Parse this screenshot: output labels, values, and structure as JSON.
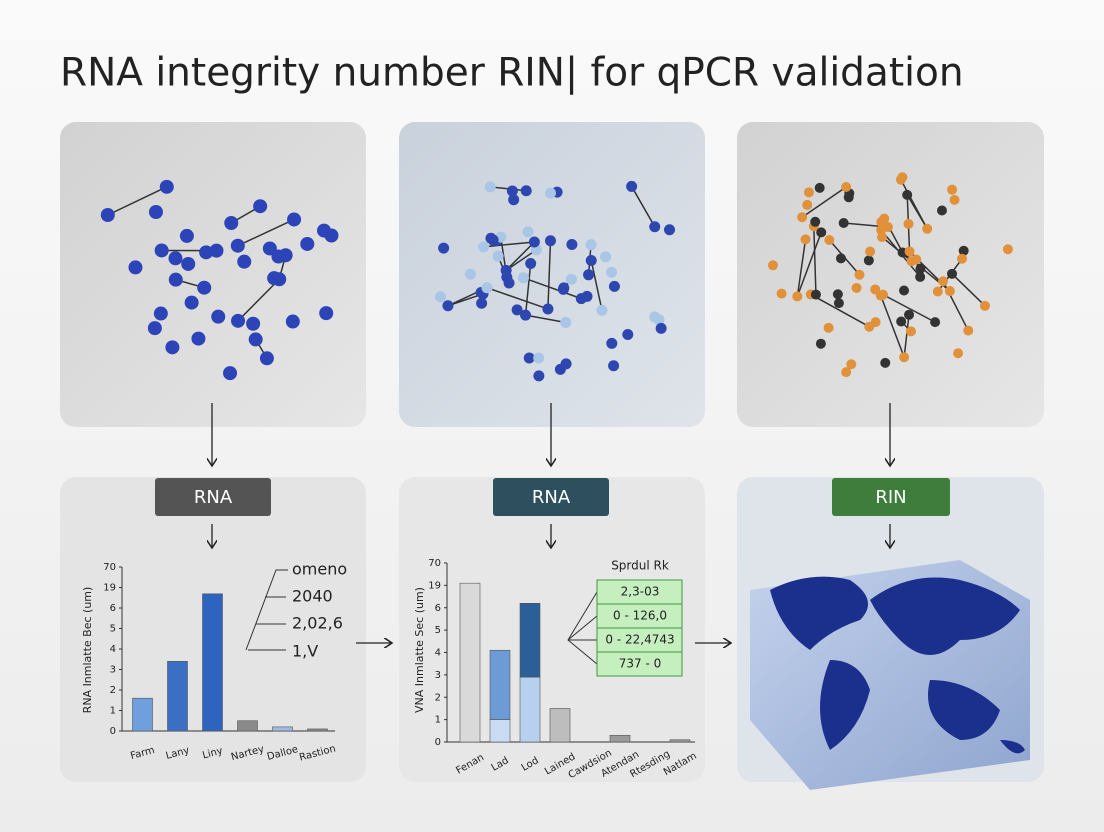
{
  "title": "RNA integrity number RIN| for qPCR validation",
  "stages": [
    {
      "label": "RNA"
    },
    {
      "label": "RNA"
    },
    {
      "label": "RIN"
    }
  ],
  "charts": [
    {
      "type": "bar",
      "ylabel": "RNA Inmlatte Bec (um)",
      "yticks": [
        0,
        1,
        2,
        3,
        4,
        5,
        6,
        19,
        70
      ],
      "categories": [
        "Farm",
        "Lany",
        "Liny",
        "Nartey",
        "Dalloe",
        "Rastion"
      ],
      "values": [
        1.6,
        3.4,
        15,
        0.5,
        0.2,
        0.1
      ],
      "colors": [
        "#6f9fdc",
        "#3a6fc4",
        "#2f63c0",
        "#8a8a8a",
        "#9bbbe6",
        "#8a8a8a"
      ],
      "annotations": [
        "omeno",
        "2040",
        "2,02,6",
        "1,V"
      ]
    },
    {
      "type": "stacked-bar",
      "ylabel": "VNA Inmlatte Sec (um)",
      "yticks": [
        0,
        1,
        2,
        3,
        4,
        5,
        6,
        19,
        70
      ],
      "categories": [
        "Fenan",
        "Lad",
        "Lod",
        "Lained",
        "Cawdsion",
        "Atendan",
        "Rtesding",
        "Natlam"
      ],
      "series": [
        {
          "values": [
            24,
            1,
            2.9,
            1.5,
            null,
            0.3,
            null,
            0.1
          ],
          "colors": [
            "#d9d9d9",
            "#c9dcf3",
            "#b8d0ef",
            "#bdbdbd",
            null,
            "#9a9a9a",
            null,
            "#9a9a9a"
          ]
        },
        {
          "values": [
            null,
            3.1,
            5.7,
            null,
            null,
            null,
            null,
            null
          ],
          "colors": [
            null,
            "#6c9bd6",
            "#2b5f97",
            null,
            null,
            null,
            null,
            null
          ]
        }
      ],
      "table": {
        "title": "Sprdul Rk",
        "rows": [
          "2,3-03",
          "0 - 126,0",
          "0 - 22,4743",
          "737 - 0"
        ]
      }
    }
  ]
}
